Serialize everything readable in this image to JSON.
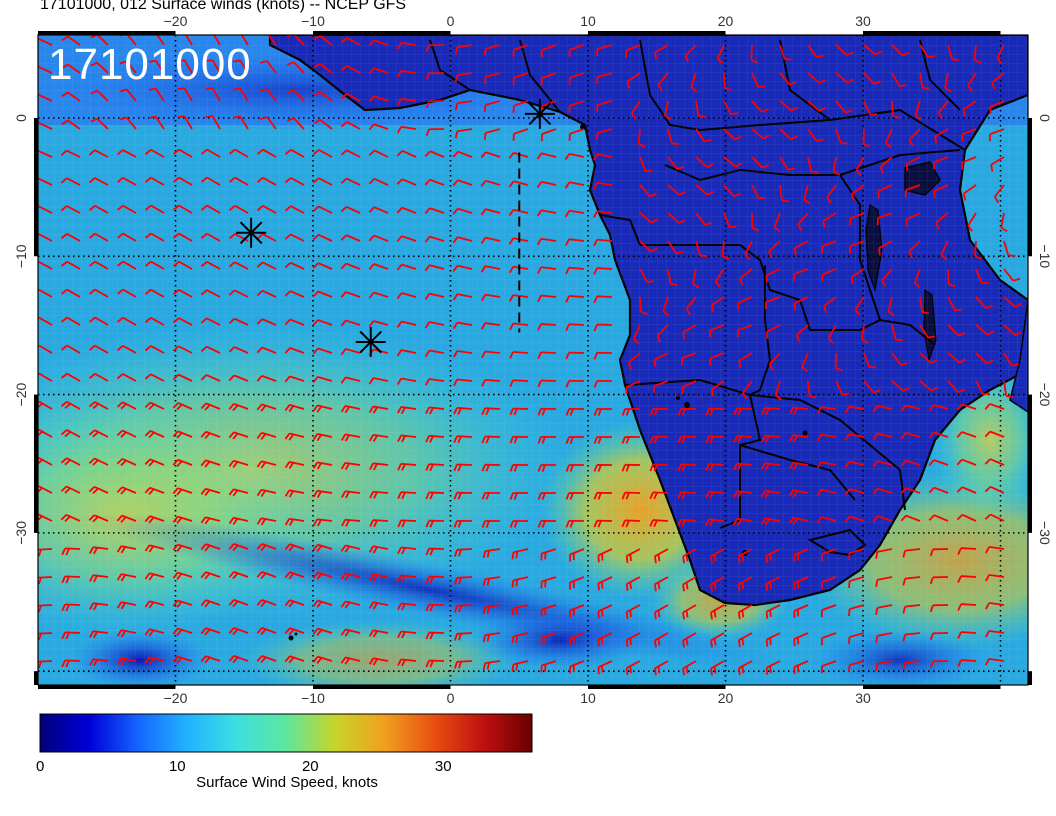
{
  "title": "17101000, 012 Surface winds (knots) -- NCEP GFS",
  "date_stamp": "17101000",
  "colorbar": {
    "label": "Surface Wind Speed, knots",
    "ticks": [
      "0",
      "10",
      "20",
      "30"
    ],
    "range": [
      0,
      37
    ],
    "colors": [
      "#00007a",
      "#0000d8",
      "#1565ff",
      "#22b3ff",
      "#3de0e0",
      "#5de6a0",
      "#c8d428",
      "#f0a020",
      "#e85010",
      "#c01010",
      "#6a0000"
    ]
  },
  "map": {
    "lon_range": [
      -30,
      42
    ],
    "lat_range": [
      -41,
      6
    ],
    "lon_ticks": [
      "-20",
      "-10",
      "0",
      "10",
      "20",
      "30"
    ],
    "lat_ticks": [
      "0",
      "-10",
      "-20",
      "-30"
    ],
    "graticule": "dotted",
    "land_color": "#1a2ab8",
    "ocean_color": "#2aa8e0",
    "barb_color": "#ff0000",
    "markers": [
      {
        "lon": 6.5,
        "lat": 0.3
      },
      {
        "lon": -14.5,
        "lat": -8.3
      },
      {
        "lon": -5.8,
        "lat": -16.2
      }
    ],
    "dashed_track": [
      [
        5.0,
        -2.5
      ],
      [
        5.0,
        -15.5
      ]
    ]
  }
}
